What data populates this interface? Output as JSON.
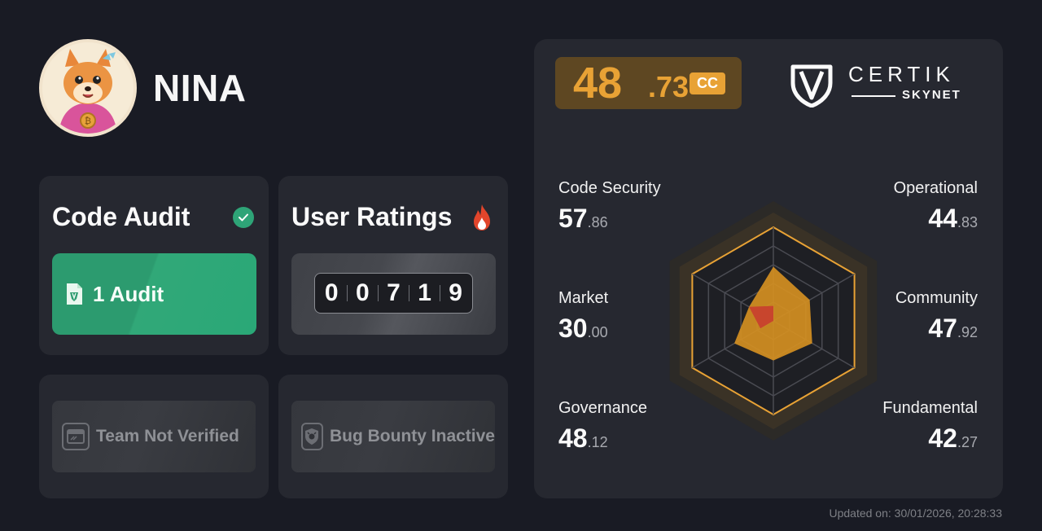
{
  "project": {
    "name": "NINA"
  },
  "cards": {
    "code_audit": {
      "title": "Code Audit",
      "button_label": "1 Audit"
    },
    "user_ratings": {
      "title": "User Ratings",
      "digits": [
        "0",
        "0",
        "7",
        "1",
        "9"
      ]
    },
    "team": {
      "label": "Team Not Verified"
    },
    "bug_bounty": {
      "label": "Bug Bounty Inactive"
    }
  },
  "score": {
    "integer": "48",
    "decimal": ".73",
    "grade": "CC"
  },
  "brand": {
    "name": "CERTIK",
    "sub": "SKYNET"
  },
  "metrics": {
    "code_security": {
      "label": "Code Security",
      "int": "57",
      "dec": ".86"
    },
    "operational": {
      "label": "Operational",
      "int": "44",
      "dec": ".83"
    },
    "market": {
      "label": "Market",
      "int": "30",
      "dec": ".00"
    },
    "community": {
      "label": "Community",
      "int": "47",
      "dec": ".92"
    },
    "governance": {
      "label": "Governance",
      "int": "48",
      "dec": ".12"
    },
    "fundamental": {
      "label": "Fundamental",
      "int": "42",
      "dec": ".27"
    }
  },
  "radar": {
    "values": [
      57.86,
      44.83,
      47.92,
      42.27,
      48.12,
      30.0
    ],
    "max": 100,
    "colors": {
      "fill": "#d48f22",
      "accent": "#e8a235",
      "low": "#c8452d"
    }
  },
  "footer": {
    "updated": "Updated on: 30/01/2026, 20:28:33"
  },
  "colors": {
    "background": "#191b24",
    "card": "#262830",
    "audit_green": "#2ea477",
    "score_orange": "#e8a235"
  }
}
